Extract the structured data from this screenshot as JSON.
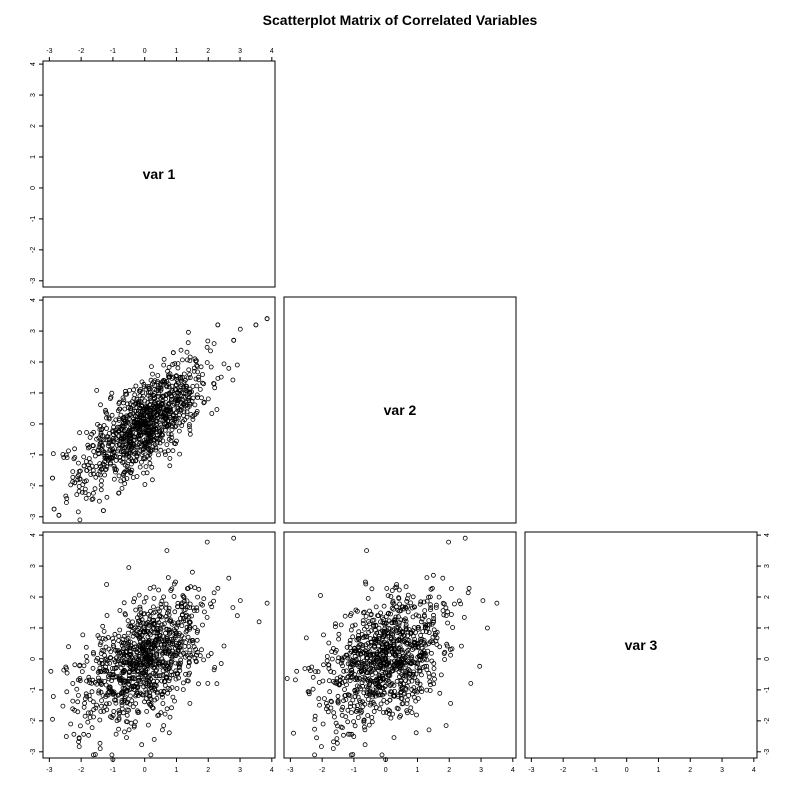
{
  "title": "Scatterplot Matrix of Correlated Variables",
  "chart_data": {
    "type": "scatter",
    "layout": "scatterplot-matrix-lower-triangle",
    "variables": [
      "var 1",
      "var 2",
      "var 3"
    ],
    "axis_ticks": [
      -3,
      -2,
      -1,
      0,
      1,
      2,
      3,
      4
    ],
    "axis_range": [
      -3.2,
      4.1
    ],
    "n_points": 1000,
    "point_style": "open-circle",
    "panels": [
      {
        "x_var": "var 1",
        "y_var": "var 2",
        "correlation_approx": 0.7
      },
      {
        "x_var": "var 1",
        "y_var": "var 3",
        "correlation_approx": 0.5
      },
      {
        "x_var": "var 2",
        "y_var": "var 3",
        "correlation_approx": 0.3
      }
    ],
    "sample_points": {
      "var1_var2": [
        [
          3.85,
          3.4
        ],
        [
          3.5,
          3.2
        ],
        [
          2.3,
          3.2
        ],
        [
          -2.85,
          -2.75
        ],
        [
          -2.7,
          -2.95
        ],
        [
          -1.3,
          -2.8
        ],
        [
          -2.2,
          -1.9
        ],
        [
          2.8,
          2.7
        ],
        [
          -2.9,
          -1.75
        ],
        [
          0.9,
          2.3
        ]
      ],
      "var1_var3": [
        [
          3.85,
          1.8
        ],
        [
          2.8,
          3.9
        ],
        [
          0.7,
          3.5
        ],
        [
          -0.5,
          2.95
        ],
        [
          -1.0,
          -3.25
        ],
        [
          -2.95,
          -0.4
        ],
        [
          -2.9,
          -1.95
        ],
        [
          3.6,
          1.2
        ],
        [
          1.5,
          2.8
        ],
        [
          0.3,
          -2.6
        ]
      ],
      "var2_var3": [
        [
          3.5,
          1.8
        ],
        [
          2.5,
          3.9
        ],
        [
          -0.6,
          3.5
        ],
        [
          -2.8,
          -0.4
        ],
        [
          0.0,
          -3.25
        ],
        [
          -2.9,
          -2.4
        ],
        [
          3.2,
          1.0
        ],
        [
          -2.05,
          2.05
        ],
        [
          1.5,
          2.7
        ],
        [
          -1.4,
          -2.2
        ]
      ]
    }
  }
}
